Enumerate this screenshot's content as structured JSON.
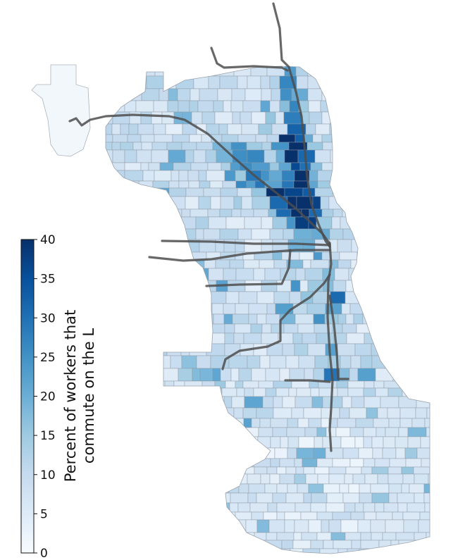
{
  "colorbar": {
    "label_line1": "Percent of workers that",
    "label_line2": "commute on the L",
    "min": 0,
    "max": 40,
    "ticks": [
      "0",
      "5",
      "10",
      "15",
      "20",
      "25",
      "30",
      "35",
      "40"
    ],
    "colormap": "Blues",
    "color_stops": [
      "#f7fbff",
      "#deebf7",
      "#c6dbef",
      "#9ecae1",
      "#6baed6",
      "#4292c6",
      "#2171b5",
      "#08519c",
      "#08306b"
    ]
  },
  "map": {
    "subject": "Chicago census tracts shaded by percent of workers that commute on the L",
    "rail_lines": [
      "north-main-line",
      "northwest-branch",
      "west-branch-upper",
      "west-branch-middle",
      "west-branch-lower",
      "southwest-branch",
      "south-main-line",
      "south-east-branch"
    ]
  }
}
